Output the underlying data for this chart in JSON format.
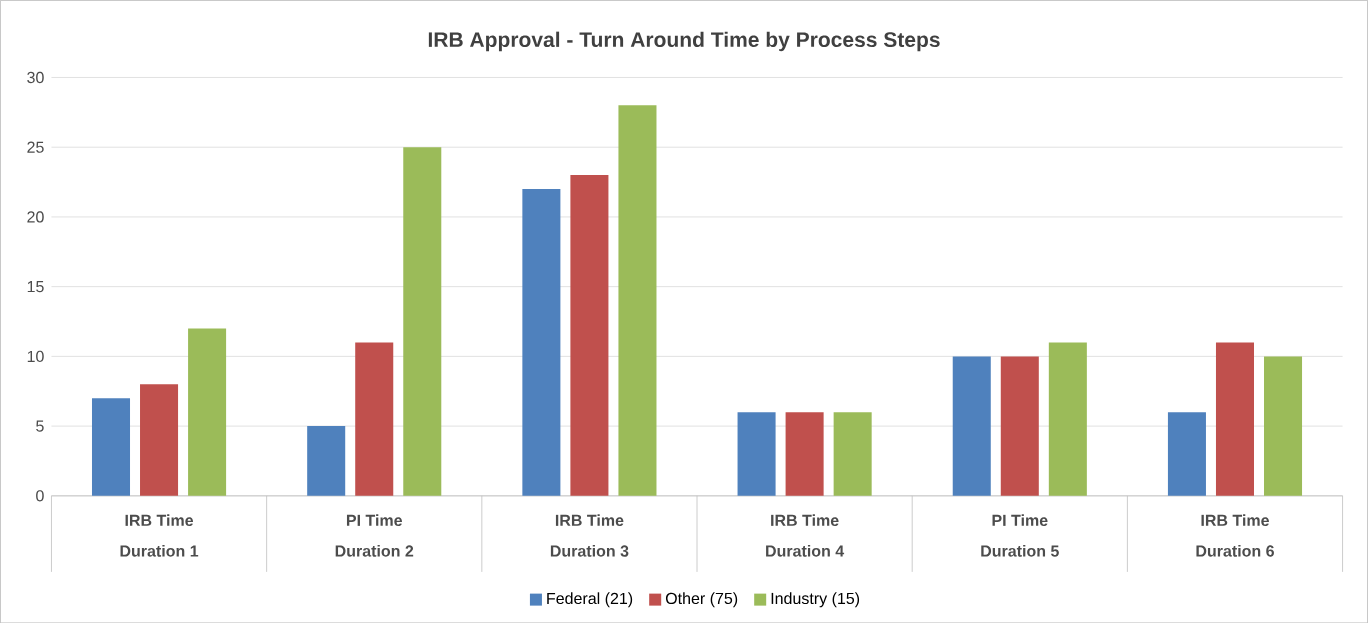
{
  "chart_data": {
    "type": "bar",
    "title": "IRB Approval - Turn Around Time by Process Steps",
    "categories": [
      "Duration 1",
      "Duration 2",
      "Duration 3",
      "Duration 4",
      "Duration 5",
      "Duration 6"
    ],
    "annotations": [
      "IRB Time",
      "PI Time",
      "IRB Time",
      "IRB Time",
      "PI Time",
      "IRB Time"
    ],
    "series": [
      {
        "name": "Federal (21)",
        "color": "#4f81bd",
        "values": [
          7,
          5,
          22,
          6,
          10,
          6
        ]
      },
      {
        "name": "Other (75)",
        "color": "#c0504d",
        "values": [
          8,
          11,
          23,
          6,
          10,
          11
        ]
      },
      {
        "name": "Industry (15)",
        "color": "#9bbb59",
        "values": [
          12,
          25,
          28,
          6,
          11,
          10
        ]
      }
    ],
    "ylim": [
      0,
      30
    ],
    "yticks": [
      0,
      5,
      10,
      15,
      20,
      25,
      30
    ],
    "grid": "y",
    "legend": "bottom"
  }
}
